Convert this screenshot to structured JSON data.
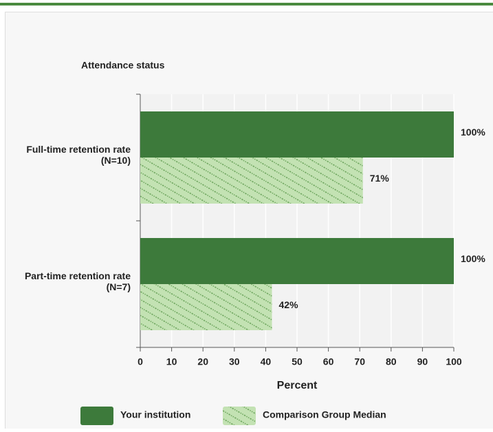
{
  "chart_data": {
    "type": "hbar",
    "title": "Attendance status",
    "categories": [
      "Full-time retention rate (N=10)",
      "Part-time retention rate (N=7)"
    ],
    "series": [
      {
        "name": "Your institution",
        "color": "#3d7a3b",
        "values": [
          100,
          100
        ],
        "value_labels": [
          "100%",
          "100%"
        ]
      },
      {
        "name": "Comparison Group Median",
        "color": "#c3e2b3",
        "hatch": true,
        "values": [
          71,
          42
        ],
        "value_labels": [
          "71%",
          "42%"
        ]
      }
    ],
    "x_label": "Percent",
    "xlim": [
      0,
      100
    ],
    "xticks": [
      0,
      10,
      20,
      30,
      40,
      50,
      60,
      70,
      80,
      90,
      100
    ],
    "grid": true
  }
}
